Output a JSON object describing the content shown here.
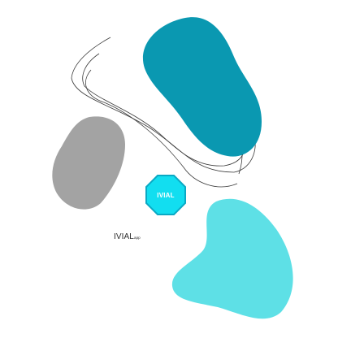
{
  "octagon": {
    "label": "IVIAL"
  },
  "caption": {
    "text": "IVIAL",
    "suffix": "app"
  },
  "colors": {
    "background": "#ffffff",
    "teal_blob": "#0a98b1",
    "gray_blob": "#a3a3a3",
    "cyan_blob": "#5ee0e6",
    "octagon_fill": "#12def0",
    "octagon_stroke": "#0aa9c4",
    "line_stroke": "#3a3a3a"
  },
  "icons": [
    "teal-blob-shape",
    "gray-blob-shape",
    "cyan-blob-shape",
    "octagon-badge-icon",
    "line-swirl-art"
  ]
}
